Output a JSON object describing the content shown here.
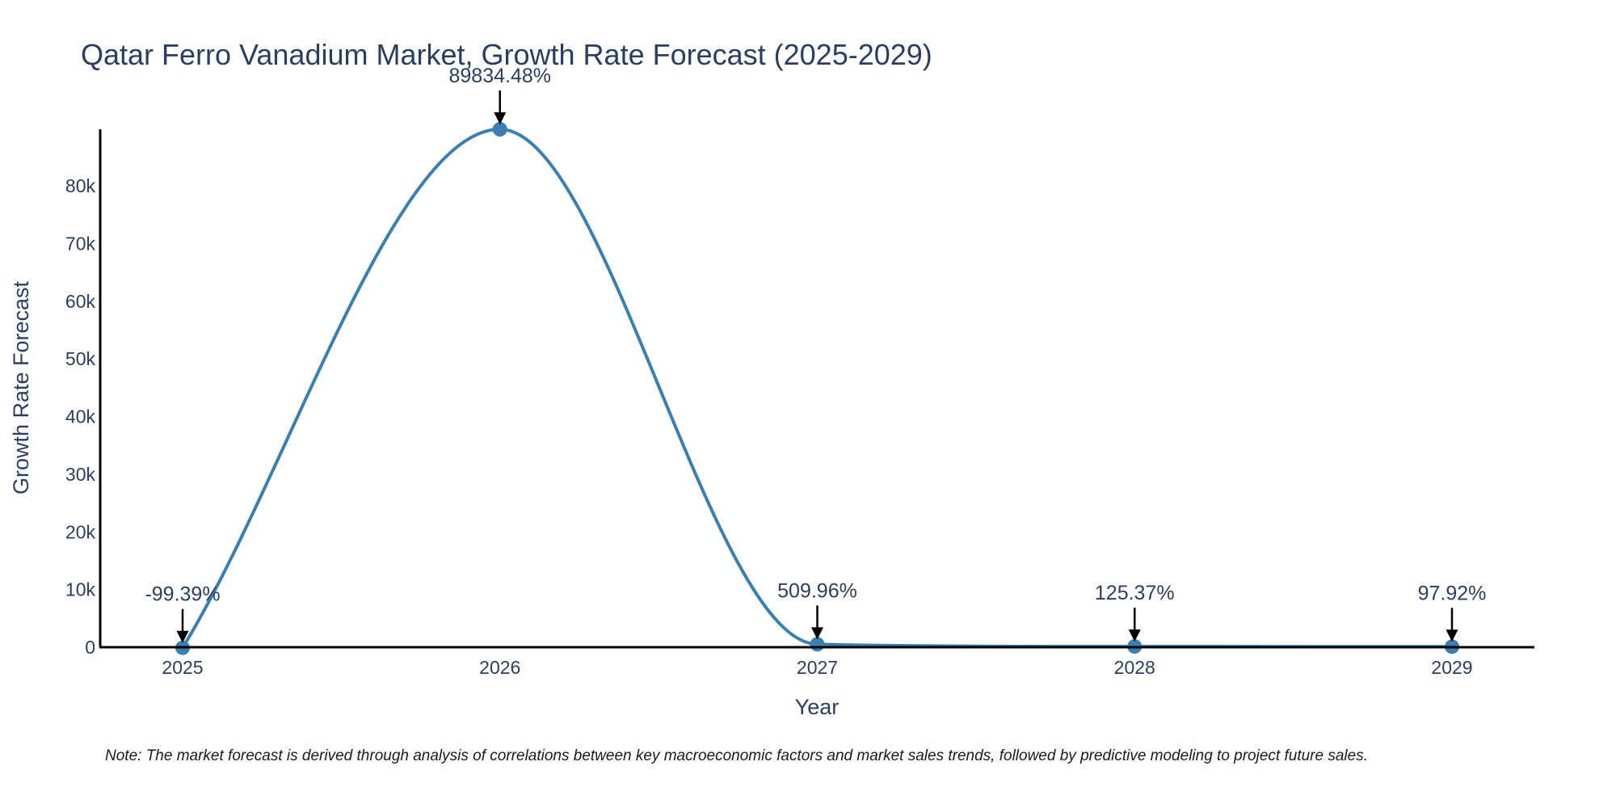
{
  "chart_data": {
    "type": "line",
    "title": "Qatar Ferro Vanadium Market, Growth Rate Forecast (2025-2029)",
    "xlabel": "Year",
    "ylabel": "Growth Rate Forecast",
    "categories": [
      "2025",
      "2026",
      "2027",
      "2028",
      "2029"
    ],
    "values": [
      -99.39,
      89834.48,
      509.96,
      125.37,
      97.92
    ],
    "data_labels": [
      "-99.39%",
      "89834.48%",
      "509.96%",
      "125.37%",
      "97.92%"
    ],
    "ylim": [
      0,
      89834.48
    ],
    "yticks": [
      0,
      10000,
      20000,
      30000,
      40000,
      50000,
      60000,
      70000,
      80000
    ],
    "ytick_labels": [
      "0",
      "10k",
      "20k",
      "30k",
      "40k",
      "50k",
      "60k",
      "70k",
      "80k"
    ],
    "grid": false,
    "legend": "none",
    "line_color": "#3a7fb0",
    "axis_color": "#000000",
    "text_color": "#2a3f5f"
  },
  "note": "Note: The market forecast is derived through analysis of correlations between key macroeconomic factors and market sales trends, followed by predictive modeling to project future sales."
}
